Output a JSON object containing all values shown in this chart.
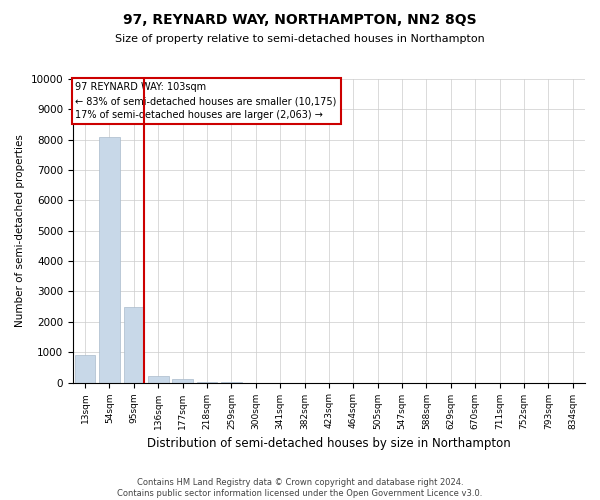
{
  "title": "97, REYNARD WAY, NORTHAMPTON, NN2 8QS",
  "subtitle": "Size of property relative to semi-detached houses in Northampton",
  "xlabel": "Distribution of semi-detached houses by size in Northampton",
  "ylabel": "Number of semi-detached properties",
  "categories": [
    "13sqm",
    "54sqm",
    "95sqm",
    "136sqm",
    "177sqm",
    "218sqm",
    "259sqm",
    "300sqm",
    "341sqm",
    "382sqm",
    "423sqm",
    "464sqm",
    "505sqm",
    "547sqm",
    "588sqm",
    "629sqm",
    "670sqm",
    "711sqm",
    "752sqm",
    "793sqm",
    "834sqm"
  ],
  "values": [
    900,
    8100,
    2500,
    230,
    130,
    10,
    5,
    2,
    1,
    1,
    0,
    0,
    0,
    0,
    0,
    0,
    0,
    0,
    0,
    0,
    0
  ],
  "bar_color": "#c8d8e8",
  "bar_edge_color": "#aabbcc",
  "vline_index": 2,
  "vline_color": "#cc0000",
  "annotation_line1": "97 REYNARD WAY: 103sqm",
  "annotation_line2": "← 83% of semi-detached houses are smaller (10,175)",
  "annotation_line3": "17% of semi-detached houses are larger (2,063) →",
  "annotation_box_color": "#cc0000",
  "ylim": [
    0,
    10000
  ],
  "yticks": [
    0,
    1000,
    2000,
    3000,
    4000,
    5000,
    6000,
    7000,
    8000,
    9000,
    10000
  ],
  "footer_line1": "Contains HM Land Registry data © Crown copyright and database right 2024.",
  "footer_line2": "Contains public sector information licensed under the Open Government Licence v3.0.",
  "bg_color": "#ffffff",
  "grid_color": "#cccccc"
}
